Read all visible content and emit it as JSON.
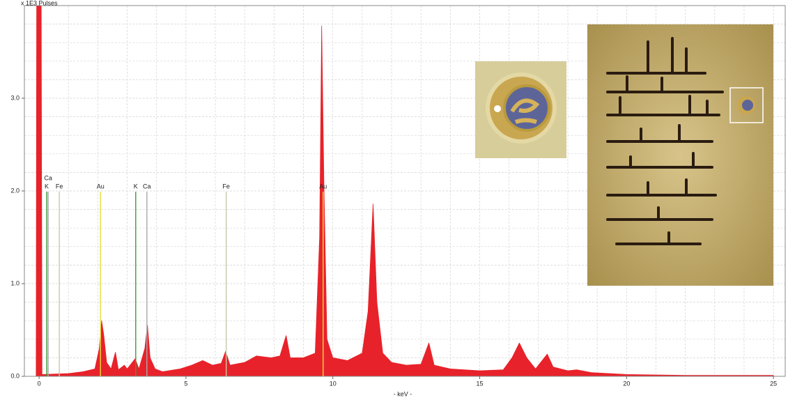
{
  "chart_data": {
    "type": "area",
    "title": "x 1E3 Pulses",
    "x_label": "- keV -",
    "color": "#e8222a",
    "x": [
      -0.1,
      -0.08,
      0.07,
      0.1,
      1,
      1.5,
      1.9,
      2.05,
      2.13,
      2.2,
      2.3,
      2.45,
      2.6,
      2.7,
      2.9,
      3.0,
      3.27,
      3.4,
      3.6,
      3.69,
      3.78,
      3.95,
      4.2,
      4.8,
      5.2,
      5.57,
      5.9,
      6.2,
      6.35,
      6.5,
      7.0,
      7.4,
      7.9,
      8.2,
      8.41,
      8.55,
      9.0,
      9.4,
      9.55,
      9.62,
      9.7,
      9.8,
      10.0,
      10.5,
      11.0,
      11.2,
      11.37,
      11.5,
      11.7,
      12.0,
      12.5,
      13.0,
      13.27,
      13.45,
      14.0,
      15.0,
      15.8,
      16.1,
      16.35,
      16.6,
      16.9,
      17.3,
      17.5,
      18.0,
      18.3,
      18.8,
      20,
      22,
      25
    ],
    "values": [
      0,
      4.5,
      4.5,
      0.02,
      0.03,
      0.05,
      0.08,
      0.3,
      0.6,
      0.45,
      0.15,
      0.08,
      0.26,
      0.07,
      0.12,
      0.08,
      0.19,
      0.08,
      0.3,
      0.55,
      0.2,
      0.08,
      0.05,
      0.08,
      0.12,
      0.17,
      0.12,
      0.14,
      0.27,
      0.12,
      0.15,
      0.22,
      0.2,
      0.22,
      0.44,
      0.2,
      0.2,
      0.25,
      1.5,
      3.78,
      2.0,
      0.4,
      0.2,
      0.17,
      0.25,
      0.7,
      1.86,
      0.8,
      0.25,
      0.15,
      0.12,
      0.13,
      0.36,
      0.12,
      0.08,
      0.06,
      0.07,
      0.2,
      0.36,
      0.2,
      0.08,
      0.24,
      0.1,
      0.06,
      0.07,
      0.04,
      0.02,
      0.01,
      0.01
    ],
    "element_lines": [
      {
        "label": "K",
        "energy": 0.26,
        "color": "#3f9a3a"
      },
      {
        "label": "Ca",
        "energy": 0.31,
        "color": "#a9a9a9"
      },
      {
        "label": "Fe",
        "energy": 0.69,
        "color": "#c9c9a8"
      },
      {
        "label": "Au",
        "energy": 2.09,
        "color": "#e6df3a"
      },
      {
        "label": "K",
        "energy": 3.29,
        "color": "#3f9a3a"
      },
      {
        "label": "Ca",
        "energy": 3.67,
        "color": "#a9a9a9"
      },
      {
        "label": "Fe",
        "energy": 6.37,
        "color": "#c9c9a8"
      },
      {
        "label": "Au",
        "energy": 9.67,
        "color": "#e6df3a"
      }
    ],
    "xlim": [
      -0.5,
      25.4
    ],
    "ylim": [
      0,
      4.0
    ],
    "xticks": [
      0,
      5,
      10,
      15,
      20,
      25
    ],
    "yticks": [
      {
        "value": 0,
        "label": "0.0"
      },
      {
        "value": 1,
        "label": "1.0"
      },
      {
        "value": 2,
        "label": "2.0"
      },
      {
        "value": 3,
        "label": "3.0"
      }
    ],
    "xgrid": [
      0,
      1,
      2,
      3,
      4,
      5,
      6,
      7,
      8,
      9,
      10,
      11,
      12,
      13,
      14,
      15,
      16,
      17,
      18,
      19,
      20,
      21,
      22,
      23,
      24,
      25
    ],
    "ygrid": [
      0.2,
      0.4,
      0.6,
      0.8,
      1,
      1.2,
      1.4,
      1.6,
      1.8,
      2,
      2.2,
      2.4,
      2.6,
      2.8,
      3,
      3.2,
      3.4,
      3.6,
      3.8
    ],
    "grid": true
  }
}
